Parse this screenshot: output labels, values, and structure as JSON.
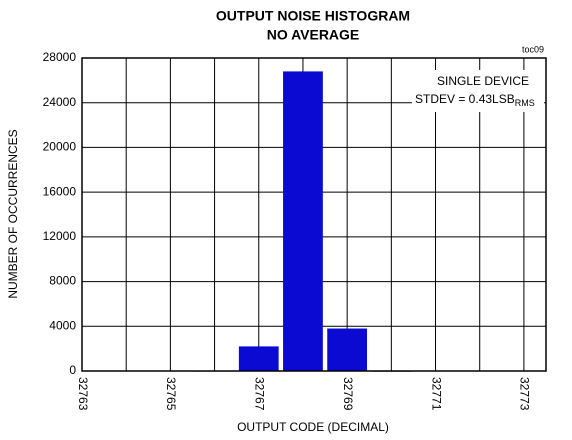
{
  "chart_data": {
    "type": "bar",
    "title": "OUTPUT NOISE HISTOGRAM",
    "subtitle": "NO AVERAGE",
    "x_label": "OUTPUT CODE (DECIMAL)",
    "y_label": "NUMBER OF OCCURRENCES",
    "figure_id": "toc09",
    "annotation": [
      "SINGLE DEVICE",
      "STDEV = 0.43LSB",
      "RMS"
    ],
    "x": [
      32766,
      32767,
      32768,
      32769,
      32770
    ],
    "values": [
      40,
      2200,
      26800,
      3800,
      30
    ],
    "color": "#0a0ad2",
    "xlim": [
      32763,
      32773.5
    ],
    "xticks": [
      32763,
      32765,
      32767,
      32769,
      32771,
      32773
    ],
    "xminor_ticks": [
      32764,
      32766,
      32768,
      32770,
      32772
    ],
    "ylim": [
      0,
      28000
    ],
    "yticks": [
      0,
      4000,
      8000,
      12000,
      16000,
      20000,
      24000,
      28000
    ],
    "grid": true
  }
}
